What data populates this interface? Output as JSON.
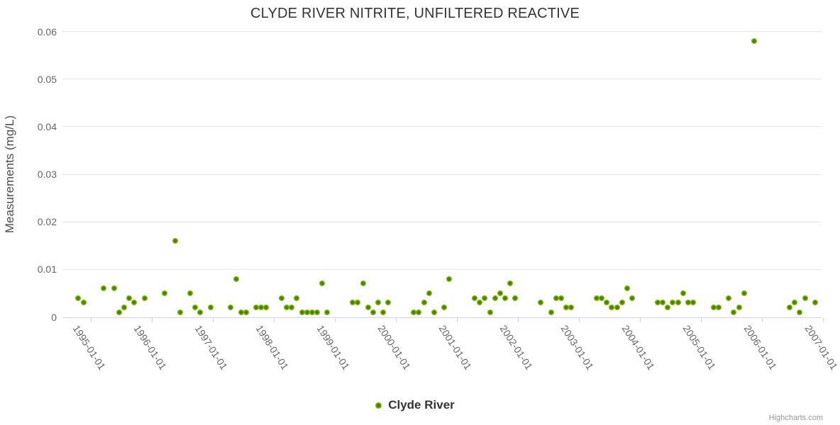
{
  "title": "CLYDE RIVER NITRITE, UNFILTERED REACTIVE",
  "legend": {
    "label": "Clyde River"
  },
  "credits": "Highcharts.com",
  "colors": {
    "point_outer": "#8abf12",
    "point_inner": "#3f6d00",
    "grid": "#e6e6e6",
    "axis_line": "#ccd6eb",
    "tick_label": "#666666",
    "title": "#333333",
    "credits": "#999999"
  },
  "chart_data": {
    "type": "scatter",
    "title": "CLYDE RIVER NITRITE, UNFILTERED REACTIVE",
    "xlabel": "",
    "ylabel": "Measurements (mg/L)",
    "ylim": [
      0,
      0.06
    ],
    "y_ticks": [
      0,
      0.01,
      0.02,
      0.03,
      0.04,
      0.05,
      0.06
    ],
    "y_tick_labels": [
      "0",
      "0.01",
      "0.02",
      "0.03",
      "0.04",
      "0.05",
      "0.06"
    ],
    "x_tick_labels": [
      "1995-01-01",
      "1996-01-01",
      "1997-01-01",
      "1998-01-01",
      "1999-01-01",
      "2000-01-01",
      "2001-01-01",
      "2002-01-01",
      "2003-01-01",
      "2004-01-01",
      "2005-01-01",
      "2006-01-01",
      "2007-01-01"
    ],
    "x_range_year_frac": [
      1994.53,
      2006.98
    ],
    "grid": true,
    "legend_position": "bottom-center",
    "series": [
      {
        "name": "Clyde River",
        "points": [
          [
            "1994-10",
            0.004
          ],
          [
            "1994-11",
            0.003
          ],
          [
            "1995-03",
            0.006
          ],
          [
            "1995-05",
            0.006
          ],
          [
            "1995-06",
            0.001
          ],
          [
            "1995-07",
            0.002
          ],
          [
            "1995-08",
            0.004
          ],
          [
            "1995-09",
            0.003
          ],
          [
            "1995-11",
            0.004
          ],
          [
            "1996-03",
            0.005
          ],
          [
            "1996-05",
            0.016
          ],
          [
            "1996-06",
            0.001
          ],
          [
            "1996-08",
            0.005
          ],
          [
            "1996-09",
            0.002
          ],
          [
            "1996-10",
            0.001
          ],
          [
            "1996-12",
            0.002
          ],
          [
            "1997-04",
            0.002
          ],
          [
            "1997-05",
            0.008
          ],
          [
            "1997-06",
            0.001
          ],
          [
            "1997-07",
            0.001
          ],
          [
            "1997-09",
            0.002
          ],
          [
            "1997-10",
            0.002
          ],
          [
            "1997-11",
            0.002
          ],
          [
            "1998-02",
            0.004
          ],
          [
            "1998-03",
            0.002
          ],
          [
            "1998-04",
            0.002
          ],
          [
            "1998-05",
            0.004
          ],
          [
            "1998-06",
            0.001
          ],
          [
            "1998-07",
            0.001
          ],
          [
            "1998-08",
            0.001
          ],
          [
            "1998-09",
            0.001
          ],
          [
            "1998-10",
            0.007
          ],
          [
            "1998-11",
            0.001
          ],
          [
            "1999-04",
            0.003
          ],
          [
            "1999-05",
            0.003
          ],
          [
            "1999-06",
            0.007
          ],
          [
            "1999-07",
            0.002
          ],
          [
            "1999-08",
            0.001
          ],
          [
            "1999-09",
            0.003
          ],
          [
            "1999-10",
            0.001
          ],
          [
            "1999-11",
            0.003
          ],
          [
            "2000-04",
            0.001
          ],
          [
            "2000-05",
            0.001
          ],
          [
            "2000-06",
            0.003
          ],
          [
            "2000-07",
            0.005
          ],
          [
            "2000-08",
            0.001
          ],
          [
            "2000-10",
            0.002
          ],
          [
            "2000-11",
            0.008
          ],
          [
            "2001-04",
            0.004
          ],
          [
            "2001-05",
            0.003
          ],
          [
            "2001-06",
            0.004
          ],
          [
            "2001-07",
            0.001
          ],
          [
            "2001-08",
            0.004
          ],
          [
            "2001-09",
            0.005
          ],
          [
            "2001-10",
            0.004
          ],
          [
            "2001-11",
            0.007
          ],
          [
            "2001-12",
            0.004
          ],
          [
            "2002-05",
            0.003
          ],
          [
            "2002-07",
            0.001
          ],
          [
            "2002-08",
            0.004
          ],
          [
            "2002-09",
            0.004
          ],
          [
            "2002-10",
            0.002
          ],
          [
            "2002-11",
            0.002
          ],
          [
            "2003-04",
            0.004
          ],
          [
            "2003-05",
            0.004
          ],
          [
            "2003-06",
            0.003
          ],
          [
            "2003-07",
            0.002
          ],
          [
            "2003-08",
            0.002
          ],
          [
            "2003-09",
            0.003
          ],
          [
            "2003-10",
            0.006
          ],
          [
            "2003-11",
            0.004
          ],
          [
            "2004-04",
            0.003
          ],
          [
            "2004-05",
            0.003
          ],
          [
            "2004-06",
            0.002
          ],
          [
            "2004-07",
            0.003
          ],
          [
            "2004-08",
            0.003
          ],
          [
            "2004-09",
            0.005
          ],
          [
            "2004-10",
            0.003
          ],
          [
            "2004-11",
            0.003
          ],
          [
            "2005-03",
            0.002
          ],
          [
            "2005-04",
            0.002
          ],
          [
            "2005-06",
            0.004
          ],
          [
            "2005-07",
            0.001
          ],
          [
            "2005-08",
            0.002
          ],
          [
            "2005-09",
            0.005
          ],
          [
            "2005-11",
            0.058
          ],
          [
            "2006-06",
            0.002
          ],
          [
            "2006-07",
            0.003
          ],
          [
            "2006-08",
            0.001
          ],
          [
            "2006-09",
            0.004
          ],
          [
            "2006-11",
            0.003
          ]
        ]
      }
    ]
  }
}
